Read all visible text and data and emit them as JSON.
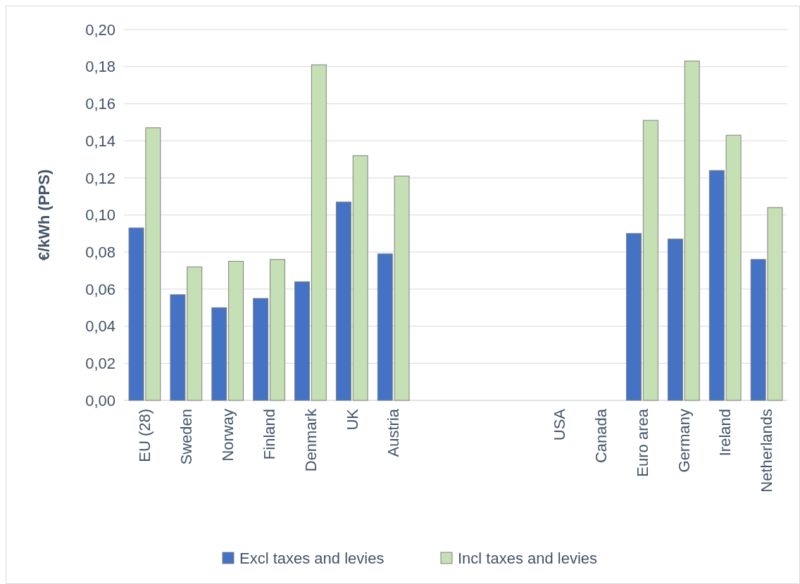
{
  "chart_data": {
    "type": "bar",
    "ylabel": "€/kWh (PPS)",
    "categories": [
      "EU (28)",
      "Sweden",
      "Norway",
      "Finland",
      "Denmark",
      "UK",
      "Austria",
      null,
      null,
      null,
      "USA",
      "Canada",
      "Euro area",
      "Germany",
      "Ireland",
      "Netherlands"
    ],
    "series": [
      {
        "name": "Excl taxes and levies",
        "color": "#4472c4",
        "values": [
          0.093,
          0.057,
          0.05,
          0.055,
          0.064,
          0.107,
          0.079,
          null,
          null,
          null,
          null,
          null,
          0.09,
          0.087,
          0.124,
          0.076
        ]
      },
      {
        "name": "Incl taxes and levies",
        "color": "#c5e0b4",
        "values": [
          0.147,
          0.072,
          0.075,
          0.076,
          0.181,
          0.132,
          0.121,
          null,
          null,
          null,
          null,
          null,
          0.151,
          0.183,
          0.143,
          0.104
        ]
      }
    ],
    "ylim": [
      0,
      0.2
    ],
    "yticks": [
      {
        "value": 0,
        "label": "0,00"
      },
      {
        "value": 0.02,
        "label": "0,02"
      },
      {
        "value": 0.04,
        "label": "0,04"
      },
      {
        "value": 0.06,
        "label": "0,06"
      },
      {
        "value": 0.08,
        "label": "0,08"
      },
      {
        "value": 0.1,
        "label": "0,10"
      },
      {
        "value": 0.12,
        "label": "0,12"
      },
      {
        "value": 0.14,
        "label": "0,14"
      },
      {
        "value": 0.16,
        "label": "0,16"
      },
      {
        "value": 0.18,
        "label": "0,18"
      },
      {
        "value": 0.2,
        "label": "0,20"
      }
    ],
    "grid": "y",
    "legend": "bottom"
  }
}
